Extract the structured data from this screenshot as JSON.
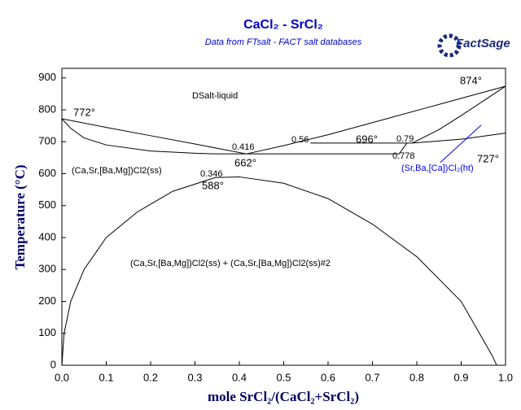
{
  "chart_data": {
    "type": "line",
    "title": "CaCl₂ - SrCl₂",
    "subtitle": "Data from FTsalt - FACT salt databases",
    "logo": "FactSage",
    "x_label": "mole SrCl₂/(CaCl₂+SrCl₂)",
    "y_label": "Temperature (°C)",
    "xlim": [
      0,
      1
    ],
    "ylim": [
      0,
      930
    ],
    "xticks": [
      {
        "value": 0,
        "label": "0.0"
      },
      {
        "value": 0.1,
        "label": "0.1"
      },
      {
        "value": 0.2,
        "label": "0.2"
      },
      {
        "value": 0.3,
        "label": "0.3"
      },
      {
        "value": 0.4,
        "label": "0.4"
      },
      {
        "value": 0.5,
        "label": "0.5"
      },
      {
        "value": 0.6,
        "label": "0.6"
      },
      {
        "value": 0.7,
        "label": "0.7"
      },
      {
        "value": 0.8,
        "label": "0.8"
      },
      {
        "value": 0.9,
        "label": "0.9"
      },
      {
        "value": 1,
        "label": "1.0"
      }
    ],
    "yticks": [
      0,
      100,
      200,
      300,
      400,
      500,
      600,
      700,
      800,
      900
    ],
    "series": [
      {
        "color": "#000000",
        "x": [
          0,
          0.1,
          0.2,
          0.3,
          0.416
        ],
        "values": [
          772,
          745,
          719,
          693,
          662
        ]
      },
      {
        "color": "#000000",
        "x": [
          0.416,
          0.5,
          0.6,
          0.7,
          0.8,
          0.9,
          1
        ],
        "values": [
          662,
          688,
          722,
          760,
          798,
          836,
          874
        ]
      },
      {
        "color": "#000000",
        "x": [
          0,
          0.02,
          0.05,
          0.1,
          0.2,
          0.3,
          0.346
        ],
        "values": [
          772,
          742,
          712,
          690,
          671,
          664,
          662
        ]
      },
      {
        "color": "#000000",
        "x": [
          0.346,
          0.76,
          0.778
        ],
        "values": [
          662,
          662,
          696
        ]
      },
      {
        "color": "#000000",
        "x": [
          0.56,
          0.79
        ],
        "values": [
          696,
          696
        ]
      },
      {
        "color": "#000000",
        "x": [
          0.79,
          0.85,
          0.9,
          0.95,
          1
        ],
        "values": [
          696,
          738,
          782,
          828,
          874
        ]
      },
      {
        "color": "#000000",
        "x": [
          0.79,
          0.9,
          1
        ],
        "values": [
          696,
          708,
          727
        ]
      },
      {
        "color": "#000000",
        "x": [
          0,
          0.005,
          0.02,
          0.05,
          0.1,
          0.17,
          0.25,
          0.346,
          0.4,
          0.5,
          0.6,
          0.7,
          0.8,
          0.9,
          0.97,
          0.98
        ],
        "values": [
          0,
          100,
          200,
          300,
          400,
          480,
          545,
          588,
          590,
          570,
          522,
          442,
          340,
          200,
          30,
          0
        ]
      },
      {
        "color": "#0000ff",
        "x": [
          0.853,
          0.945
        ],
        "values": [
          635,
          752
        ]
      }
    ],
    "annotations": [
      {
        "text": "DSalt-liquid",
        "color": "#000000"
      },
      {
        "text": "772°",
        "color": "#000000"
      },
      {
        "text": "874°",
        "color": "#000000"
      },
      {
        "text": "0.416",
        "color": "#000000"
      },
      {
        "text": "0.56",
        "color": "#000000"
      },
      {
        "text": "696°",
        "color": "#000000"
      },
      {
        "text": "0.79",
        "color": "#000000"
      },
      {
        "text": "0.778",
        "color": "#000000"
      },
      {
        "text": "662°",
        "color": "#000000"
      },
      {
        "text": "727°",
        "color": "#000000"
      },
      {
        "text": "(Ca,Sr,[Ba,Mg])Cl2(ss)",
        "color": "#000000"
      },
      {
        "text": "(Sr,Ba,[Ca])Cl₂(ht)",
        "color": "#0000ff"
      },
      {
        "text": "0.346",
        "color": "#000000"
      },
      {
        "text": "588°",
        "color": "#000000"
      },
      {
        "text": "(Ca,Sr,[Ba,Mg])Cl2(ss) + (Ca,Sr,[Ba,Mg])Cl2(ss)#2",
        "color": "#000000"
      }
    ]
  }
}
